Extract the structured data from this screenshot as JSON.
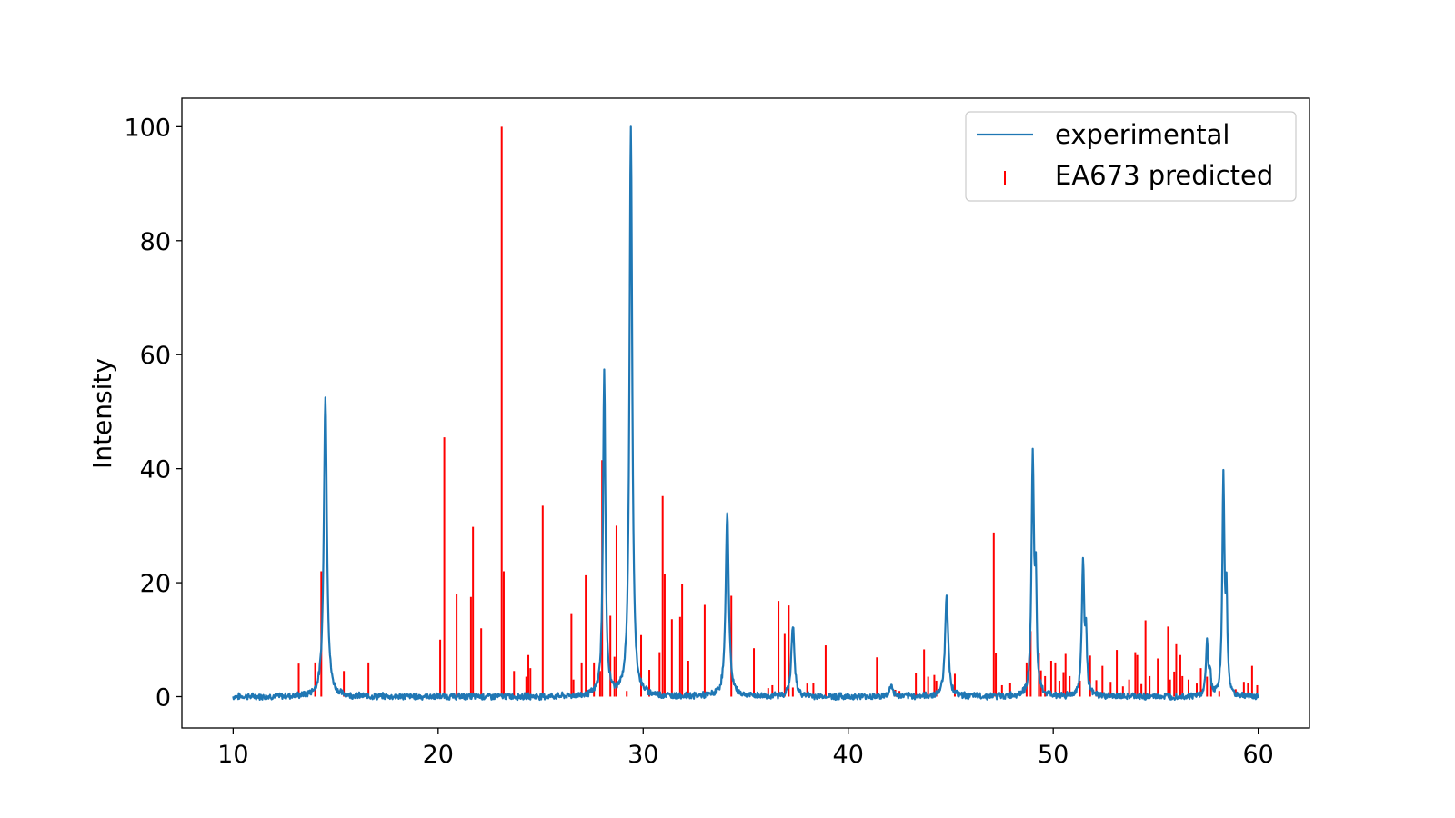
{
  "chart_data": {
    "type": "line",
    "title": "",
    "xlabel": "",
    "ylabel": "Intensity",
    "xlim": [
      7.5,
      62.5
    ],
    "ylim": [
      -5.5,
      105
    ],
    "xticks": [
      10,
      20,
      30,
      40,
      50,
      60
    ],
    "yticks": [
      0,
      20,
      40,
      60,
      80,
      100
    ],
    "grid": false,
    "legend_position": "top-right",
    "series": [
      {
        "name": "experimental",
        "kind": "line",
        "color": "#1f77b4",
        "noise_amplitude": 0.5,
        "range": [
          10,
          60
        ],
        "peaks": [
          {
            "center": 14.5,
            "height": 53,
            "width": 0.09
          },
          {
            "center": 28.1,
            "height": 57,
            "width": 0.07
          },
          {
            "center": 29.4,
            "height": 100,
            "width": 0.08
          },
          {
            "center": 34.1,
            "height": 32.5,
            "width": 0.09
          },
          {
            "center": 37.3,
            "height": 12.5,
            "width": 0.09
          },
          {
            "center": 42.1,
            "height": 2,
            "width": 0.09
          },
          {
            "center": 44.8,
            "height": 18,
            "width": 0.09
          },
          {
            "center": 49.0,
            "height": 41.5,
            "width": 0.07
          },
          {
            "center": 49.15,
            "height": 18,
            "width": 0.05
          },
          {
            "center": 51.45,
            "height": 23,
            "width": 0.07
          },
          {
            "center": 51.6,
            "height": 10,
            "width": 0.05
          },
          {
            "center": 57.5,
            "height": 9.5,
            "width": 0.06
          },
          {
            "center": 57.65,
            "height": 4,
            "width": 0.05
          },
          {
            "center": 58.3,
            "height": 38,
            "width": 0.06
          },
          {
            "center": 58.45,
            "height": 17,
            "width": 0.05
          }
        ]
      },
      {
        "name": "EA673 predicted",
        "kind": "sticks",
        "color": "#ff0000",
        "x": [
          13.2,
          14.0,
          14.3,
          15.4,
          16.6,
          20.1,
          20.3,
          20.9,
          21.6,
          21.7,
          22.1,
          23.1,
          23.2,
          23.7,
          24.3,
          24.4,
          24.5,
          25.1,
          26.5,
          26.6,
          27.0,
          27.2,
          27.6,
          27.9,
          28.0,
          28.4,
          28.6,
          28.7,
          29.2,
          29.9,
          30.3,
          30.8,
          30.95,
          31.05,
          31.4,
          31.8,
          31.9,
          32.2,
          33.0,
          34.3,
          35.4,
          36.1,
          36.3,
          36.6,
          36.9,
          37.1,
          37.3,
          38.0,
          38.3,
          38.9,
          41.4,
          42.3,
          42.5,
          43.3,
          43.7,
          43.9,
          44.2,
          44.3,
          45.2,
          47.1,
          47.2,
          47.5,
          47.9,
          48.7,
          48.9,
          49.3,
          49.4,
          49.6,
          49.9,
          50.1,
          50.3,
          50.5,
          50.6,
          50.8,
          51.3,
          51.8,
          52.1,
          52.4,
          52.8,
          53.1,
          53.4,
          53.7,
          54.0,
          54.1,
          54.3,
          54.5,
          54.7,
          55.1,
          55.6,
          55.7,
          55.9,
          56.0,
          56.2,
          56.3,
          56.6,
          57.0,
          57.2,
          57.5,
          57.7,
          58.1,
          58.9,
          59.3,
          59.5,
          59.7,
          59.95
        ],
        "values": [
          5.8,
          6,
          22,
          4.5,
          6,
          10,
          45.5,
          18,
          17.5,
          29.8,
          12,
          100,
          22,
          4.5,
          3.5,
          7.3,
          5,
          33.5,
          14.5,
          3,
          6,
          21.3,
          6,
          4.5,
          41.5,
          14.2,
          7,
          30,
          1,
          10.8,
          4.7,
          7.8,
          35.2,
          21.5,
          13.6,
          14,
          19.7,
          6.3,
          16.1,
          17.7,
          8.5,
          1.5,
          2,
          16.8,
          11,
          16,
          1.6,
          2.3,
          2.4,
          9,
          6.9,
          1.2,
          1,
          4.2,
          8.3,
          3.5,
          3.8,
          2.8,
          4,
          28.8,
          7.7,
          2,
          2.4,
          6,
          11.5,
          7.7,
          4.6,
          3.6,
          6.3,
          6,
          2.8,
          4.3,
          7.5,
          3.6,
          2.8,
          7.2,
          2.9,
          5.4,
          2.6,
          8.2,
          1.8,
          3,
          7.8,
          7.3,
          2.2,
          13.4,
          3.6,
          6.7,
          12.3,
          3,
          4.4,
          9.2,
          7.3,
          3.6,
          3,
          2.3,
          5,
          3.5,
          3.2,
          1,
          1.3,
          2.6,
          2.4,
          5.4,
          2
        ]
      }
    ]
  }
}
